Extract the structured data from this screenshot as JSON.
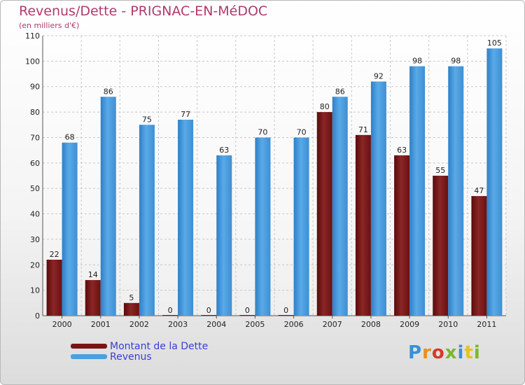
{
  "title": "Revenus/Dette - PRIGNAC-EN-MéDOC",
  "subtitle": "(en milliers d'€)",
  "logo_text": "Proxiti",
  "colors": {
    "dette": "#7a1414",
    "revenus": "#4a9fe0",
    "title": "#b03a6e",
    "legend_text": "#3c3cd6"
  },
  "chart_data": {
    "type": "bar",
    "categories": [
      "2000",
      "2001",
      "2002",
      "2003",
      "2004",
      "2005",
      "2006",
      "2007",
      "2008",
      "2009",
      "2010",
      "2011"
    ],
    "series": [
      {
        "name": "Montant de la Dette",
        "values": [
          22,
          14,
          5,
          0,
          0,
          0,
          0,
          80,
          71,
          63,
          55,
          47
        ]
      },
      {
        "name": "Revenus",
        "values": [
          68,
          86,
          75,
          77,
          63,
          70,
          70,
          86,
          92,
          98,
          98,
          105
        ]
      }
    ],
    "title": "Revenus/Dette - PRIGNAC-EN-MéDOC",
    "subtitle": "(en milliers d'€)",
    "ylim": [
      0,
      110
    ],
    "yticks": [
      0,
      10,
      20,
      30,
      40,
      50,
      60,
      70,
      80,
      90,
      100,
      110
    ],
    "grid": true,
    "legend": "bottom-left"
  }
}
